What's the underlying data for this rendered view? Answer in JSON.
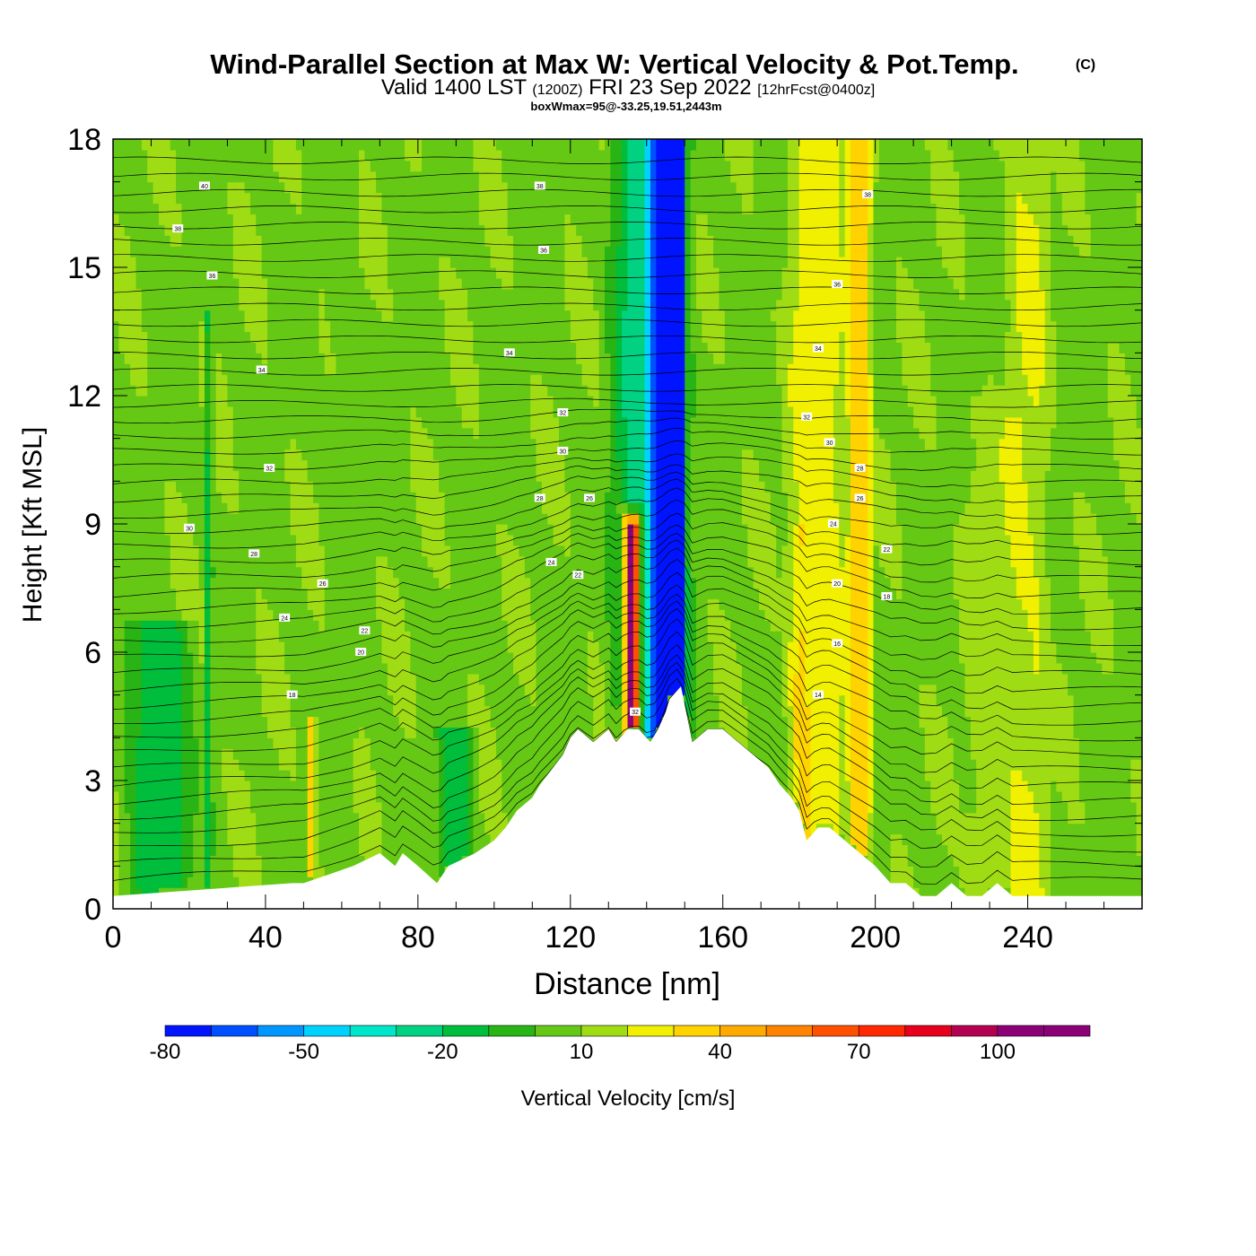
{
  "chart_data": {
    "type": "heatmap",
    "title": "Wind-Parallel Section at Max W: Vertical Velocity & Pot.Temp.",
    "copyright": "(C)",
    "subtitle": {
      "valid": "Valid 1400 LST",
      "utc": "(1200Z)",
      "date": "FRI 23 Sep 2022",
      "fcst": "[12hrFcst@0400z]"
    },
    "annotation": "boxWmax=95@-33.25,19.51,2443m",
    "xlabel": "Distance [nm]",
    "ylabel": "Height [Kft MSL]",
    "xlim": [
      0,
      270
    ],
    "ylim": [
      0,
      18
    ],
    "xticks": [
      0,
      40,
      80,
      120,
      160,
      200,
      240
    ],
    "yticks": [
      0,
      3,
      6,
      9,
      12,
      15,
      18
    ],
    "colorbar": {
      "label": "Vertical Velocity [cm/s]",
      "ticks": [
        "-80",
        "-50",
        "-20",
        "10",
        "40",
        "70",
        "100"
      ],
      "bounds": [
        -80,
        -70,
        -60,
        -50,
        -40,
        -30,
        -20,
        -10,
        0,
        10,
        20,
        30,
        40,
        50,
        60,
        70,
        80,
        90,
        100,
        110,
        120
      ],
      "colors": [
        "#0014ff",
        "#0050ff",
        "#0096ff",
        "#00d2ff",
        "#00e6c8",
        "#00d282",
        "#00be3c",
        "#28b414",
        "#64c814",
        "#a0dc14",
        "#f0f000",
        "#ffd200",
        "#ffaa00",
        "#ff8200",
        "#ff5000",
        "#ff2800",
        "#e6001e",
        "#b40050",
        "#8c0078",
        "#8c0078"
      ]
    },
    "vv_field": {
      "background": 8,
      "features": [
        {
          "x": 136,
          "ytop": 9.0,
          "width": 3,
          "value": 95
        },
        {
          "x": 136,
          "ytop": 9.2,
          "width": 6,
          "value": 60
        },
        {
          "x": 136,
          "ytop": 9.4,
          "width": 10,
          "value": 25
        },
        {
          "x": 148,
          "ytop": 18,
          "width": 4,
          "value": -75
        },
        {
          "x": 145,
          "ytop": 18,
          "width": 12,
          "value": -45
        },
        {
          "x": 141,
          "ytop": 18,
          "width": 26,
          "value": -25
        },
        {
          "x": 185,
          "ytop": 18,
          "width": 20,
          "value": 25
        },
        {
          "x": 196,
          "ytop": 18,
          "width": 8,
          "value": 35
        },
        {
          "x": 240,
          "ytop": 18,
          "width": 14,
          "value": 20
        },
        {
          "x": 52,
          "ytop": 4.5,
          "width": 3,
          "value": 35
        },
        {
          "x": 90,
          "ytop": 4.2,
          "width": 12,
          "value": -15
        },
        {
          "x": 60,
          "ytop": 18,
          "width": 10,
          "value": 5
        },
        {
          "x": 25,
          "ytop": 14,
          "width": 3,
          "value": -12
        },
        {
          "x": 230,
          "ytop": 12,
          "width": 16,
          "value": 15
        },
        {
          "x": 12,
          "ytop": 6.8,
          "width": 22,
          "value": -15
        },
        {
          "x": 180,
          "ytop": 9.0,
          "width": 6,
          "value": 18
        }
      ]
    },
    "terrain": {
      "x": [
        0,
        47,
        50,
        63,
        70,
        74,
        76,
        80,
        85,
        88,
        95,
        100,
        103,
        106,
        110,
        112,
        118,
        120,
        122,
        126,
        130,
        132,
        135,
        138,
        141,
        143,
        145,
        146,
        149,
        152,
        156,
        160,
        164,
        168,
        172,
        175,
        178,
        180,
        182,
        185,
        188,
        192,
        196,
        200,
        204,
        208,
        212,
        216,
        220,
        224,
        228,
        232,
        236,
        240,
        250,
        260,
        270
      ],
      "height": [
        0.3,
        0.6,
        0.6,
        1.0,
        1.3,
        1.0,
        1.3,
        1.0,
        0.6,
        1.0,
        1.3,
        1.6,
        1.9,
        2.3,
        2.6,
        2.9,
        3.6,
        4.0,
        4.2,
        3.9,
        4.2,
        3.9,
        4.2,
        4.2,
        3.9,
        4.2,
        4.6,
        4.9,
        5.2,
        3.9,
        4.2,
        4.2,
        3.9,
        3.6,
        3.3,
        2.9,
        2.6,
        2.3,
        1.6,
        1.9,
        1.9,
        1.6,
        1.3,
        1.0,
        0.6,
        0.6,
        0.3,
        0.3,
        0.6,
        0.3,
        0.3,
        0.6,
        0.3,
        0.3,
        0.3,
        0.3,
        0.3
      ]
    },
    "theta_labels": [
      {
        "x": 24,
        "y": 16.9,
        "text": "40"
      },
      {
        "x": 17,
        "y": 15.9,
        "text": "38"
      },
      {
        "x": 26,
        "y": 14.8,
        "text": "36"
      },
      {
        "x": 39,
        "y": 12.6,
        "text": "34"
      },
      {
        "x": 41,
        "y": 10.3,
        "text": "32"
      },
      {
        "x": 20,
        "y": 8.9,
        "text": "30"
      },
      {
        "x": 37,
        "y": 8.3,
        "text": "28"
      },
      {
        "x": 55,
        "y": 7.6,
        "text": "26"
      },
      {
        "x": 45,
        "y": 6.8,
        "text": "24"
      },
      {
        "x": 66,
        "y": 6.5,
        "text": "22"
      },
      {
        "x": 65,
        "y": 6.0,
        "text": "20"
      },
      {
        "x": 47,
        "y": 5.0,
        "text": "18"
      },
      {
        "x": 112,
        "y": 16.9,
        "text": "38"
      },
      {
        "x": 113,
        "y": 15.4,
        "text": "36"
      },
      {
        "x": 104,
        "y": 13.0,
        "text": "34"
      },
      {
        "x": 118,
        "y": 11.6,
        "text": "32"
      },
      {
        "x": 118,
        "y": 10.7,
        "text": "30"
      },
      {
        "x": 112,
        "y": 9.6,
        "text": "28"
      },
      {
        "x": 125,
        "y": 9.6,
        "text": "26"
      },
      {
        "x": 115,
        "y": 8.1,
        "text": "24"
      },
      {
        "x": 122,
        "y": 7.8,
        "text": "22"
      },
      {
        "x": 137,
        "y": 4.6,
        "text": "32"
      },
      {
        "x": 198,
        "y": 16.7,
        "text": "38"
      },
      {
        "x": 190,
        "y": 14.6,
        "text": "36"
      },
      {
        "x": 185,
        "y": 13.1,
        "text": "34"
      },
      {
        "x": 182,
        "y": 11.5,
        "text": "32"
      },
      {
        "x": 188,
        "y": 10.9,
        "text": "30"
      },
      {
        "x": 196,
        "y": 10.3,
        "text": "28"
      },
      {
        "x": 196,
        "y": 9.6,
        "text": "26"
      },
      {
        "x": 189,
        "y": 9.0,
        "text": "24"
      },
      {
        "x": 203,
        "y": 8.4,
        "text": "22"
      },
      {
        "x": 190,
        "y": 7.6,
        "text": "20"
      },
      {
        "x": 203,
        "y": 7.3,
        "text": "18"
      },
      {
        "x": 190,
        "y": 6.2,
        "text": "16"
      },
      {
        "x": 185,
        "y": 5.0,
        "text": "14"
      }
    ]
  }
}
